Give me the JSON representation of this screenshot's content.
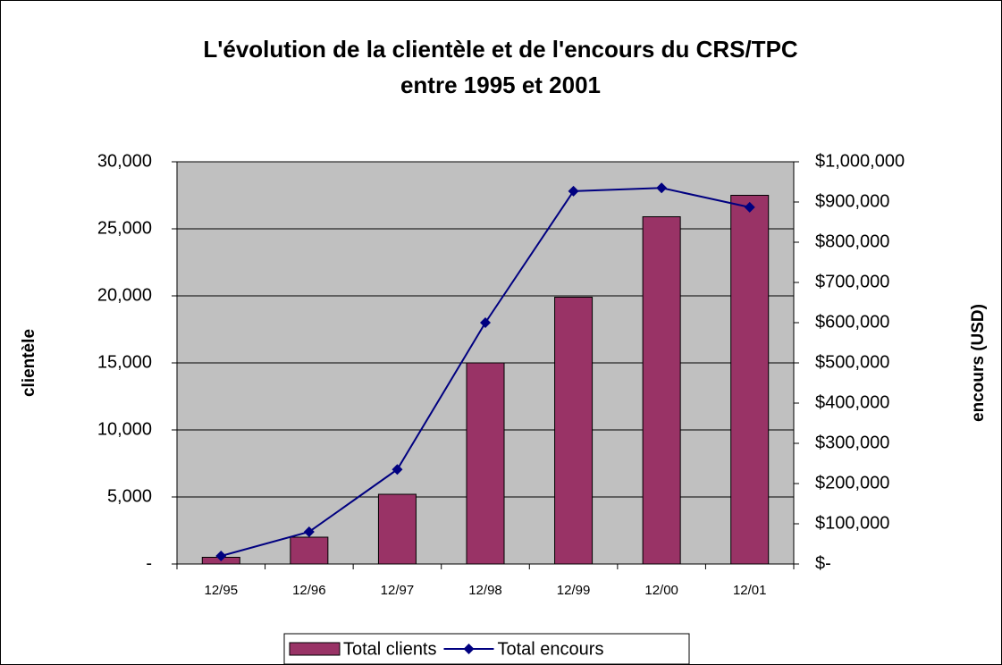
{
  "chart_data": {
    "type": "bar_line",
    "title": [
      "L'évolution de la clientèle et de l'encours du CRS/TPC",
      "entre 1995 et 2001"
    ],
    "ylabel": "clientèle",
    "y2label": "encours (USD)",
    "categories": [
      "12/95",
      "12/96",
      "12/97",
      "12/98",
      "12/99",
      "12/00",
      "12/01"
    ],
    "series": [
      {
        "name": "Total clients",
        "type": "bar",
        "color": "#993366",
        "values": [
          500,
          2000,
          5200,
          15000,
          19900,
          25900,
          27500
        ]
      },
      {
        "name": "Total encours",
        "type": "line",
        "axis": "y2",
        "color": "#000080",
        "values": [
          20000,
          80000,
          235000,
          600000,
          927000,
          935000,
          887000
        ]
      }
    ],
    "ylim": [
      0,
      30000
    ],
    "yticks": [
      {
        "value": 0,
        "label": "-"
      },
      {
        "value": 5000,
        "label": "5,000"
      },
      {
        "value": 10000,
        "label": "10,000"
      },
      {
        "value": 15000,
        "label": "15,000"
      },
      {
        "value": 20000,
        "label": "20,000"
      },
      {
        "value": 25000,
        "label": "25,000"
      },
      {
        "value": 30000,
        "label": "30,000"
      }
    ],
    "y2lim": [
      0,
      1000000
    ],
    "y2ticks": [
      {
        "value": 0,
        "label": "$-"
      },
      {
        "value": 100000,
        "label": "$100,000"
      },
      {
        "value": 200000,
        "label": "$200,000"
      },
      {
        "value": 300000,
        "label": "$300,000"
      },
      {
        "value": 400000,
        "label": "$400,000"
      },
      {
        "value": 500000,
        "label": "$500,000"
      },
      {
        "value": 600000,
        "label": "$600,000"
      },
      {
        "value": 700000,
        "label": "$700,000"
      },
      {
        "value": 800000,
        "label": "$800,000"
      },
      {
        "value": 900000,
        "label": "$900,000"
      },
      {
        "value": 1000000,
        "label": "$1,000,000"
      }
    ],
    "grid": true,
    "legend": "bottom"
  }
}
